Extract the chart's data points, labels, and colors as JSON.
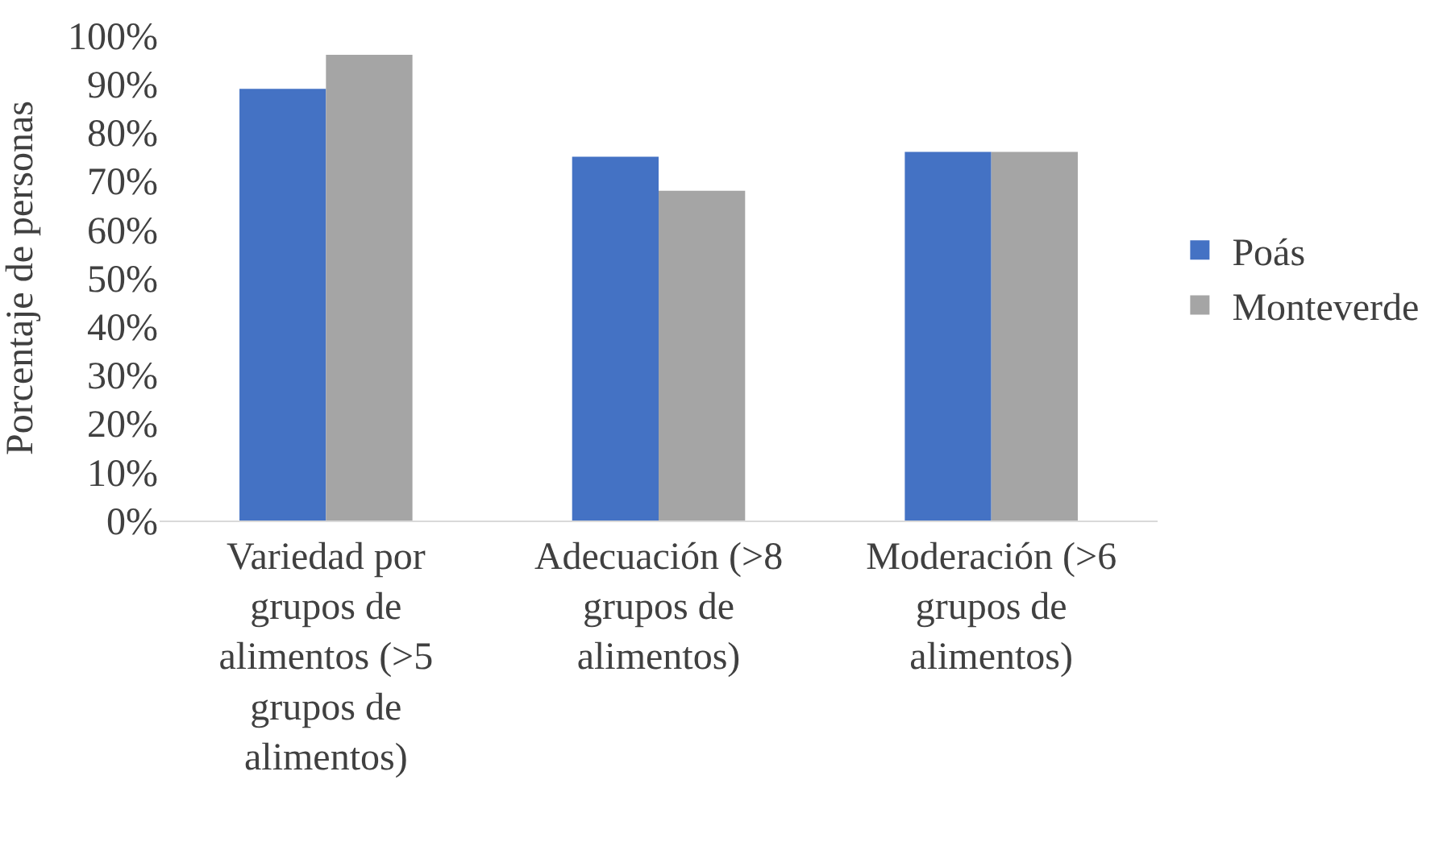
{
  "chart_data": {
    "type": "bar",
    "ylabel": "Porcentaje de personas",
    "categories": [
      "Variedad por grupos de alimentos (>5 grupos de alimentos)",
      "Adecuación (>8 grupos de alimentos)",
      "Moderación (>6 grupos de alimentos)"
    ],
    "series": [
      {
        "name": "Poás",
        "color": "#4472c4",
        "values": [
          89,
          75,
          76
        ]
      },
      {
        "name": "Monteverde",
        "color": "#a5a5a5",
        "values": [
          96,
          68,
          76
        ]
      }
    ],
    "ylim": [
      0,
      100
    ],
    "yticks": [
      {
        "value": 0,
        "label": "0%"
      },
      {
        "value": 10,
        "label": "10%"
      },
      {
        "value": 20,
        "label": "20%"
      },
      {
        "value": 30,
        "label": "30%"
      },
      {
        "value": 40,
        "label": "40%"
      },
      {
        "value": 50,
        "label": "50%"
      },
      {
        "value": 60,
        "label": "60%"
      },
      {
        "value": 70,
        "label": "70%"
      },
      {
        "value": 80,
        "label": "80%"
      },
      {
        "value": 90,
        "label": "90%"
      },
      {
        "value": 100,
        "label": "100%"
      }
    ],
    "grid": false,
    "legend": "right"
  }
}
